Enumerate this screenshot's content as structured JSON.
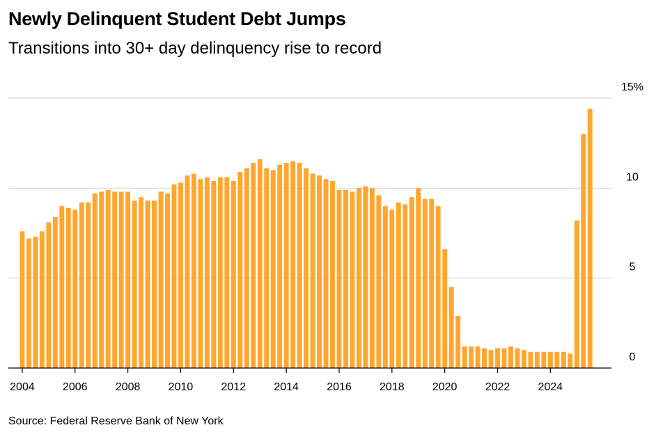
{
  "title": "Newly Delinquent Student Debt Jumps",
  "subtitle": "Transitions into 30+ day delinquency rise to record",
  "source": "Source: Federal Reserve Bank of New York",
  "colors": {
    "bar": "#FFA630",
    "grid": "#cccccc",
    "axis": "#000000"
  },
  "chart_data": {
    "type": "bar",
    "ylim": [
      0,
      15
    ],
    "y_ticks": [
      0,
      5,
      10,
      15
    ],
    "y_tick_labels": [
      "0",
      "5",
      "10",
      "15%"
    ],
    "x_tick_labels": [
      "2004",
      "2006",
      "2008",
      "2010",
      "2012",
      "2014",
      "2016",
      "2018",
      "2020",
      "2022",
      "2024"
    ],
    "x_start_year": 2004,
    "grid": true,
    "values": [
      7.6,
      7.2,
      7.3,
      7.6,
      8.1,
      8.4,
      9.0,
      8.9,
      8.8,
      9.2,
      9.2,
      9.7,
      9.8,
      9.9,
      9.8,
      9.8,
      9.8,
      9.3,
      9.5,
      9.3,
      9.3,
      9.8,
      9.7,
      10.2,
      10.3,
      10.7,
      10.8,
      10.5,
      10.6,
      10.4,
      10.6,
      10.6,
      10.4,
      10.9,
      11.1,
      11.4,
      11.6,
      11.1,
      11.0,
      11.3,
      11.4,
      11.5,
      11.4,
      11.1,
      10.8,
      10.7,
      10.5,
      10.4,
      9.9,
      9.9,
      9.8,
      10.0,
      10.1,
      10.0,
      9.6,
      9.0,
      8.8,
      9.2,
      9.1,
      9.5,
      10.0,
      9.4,
      9.4,
      9.0,
      6.6,
      4.5,
      2.9,
      1.2,
      1.2,
      1.2,
      1.1,
      1.0,
      1.1,
      1.1,
      1.2,
      1.1,
      1.0,
      0.9,
      0.9,
      0.9,
      0.9,
      0.9,
      0.9,
      0.8,
      8.2,
      13.0,
      14.4
    ]
  }
}
